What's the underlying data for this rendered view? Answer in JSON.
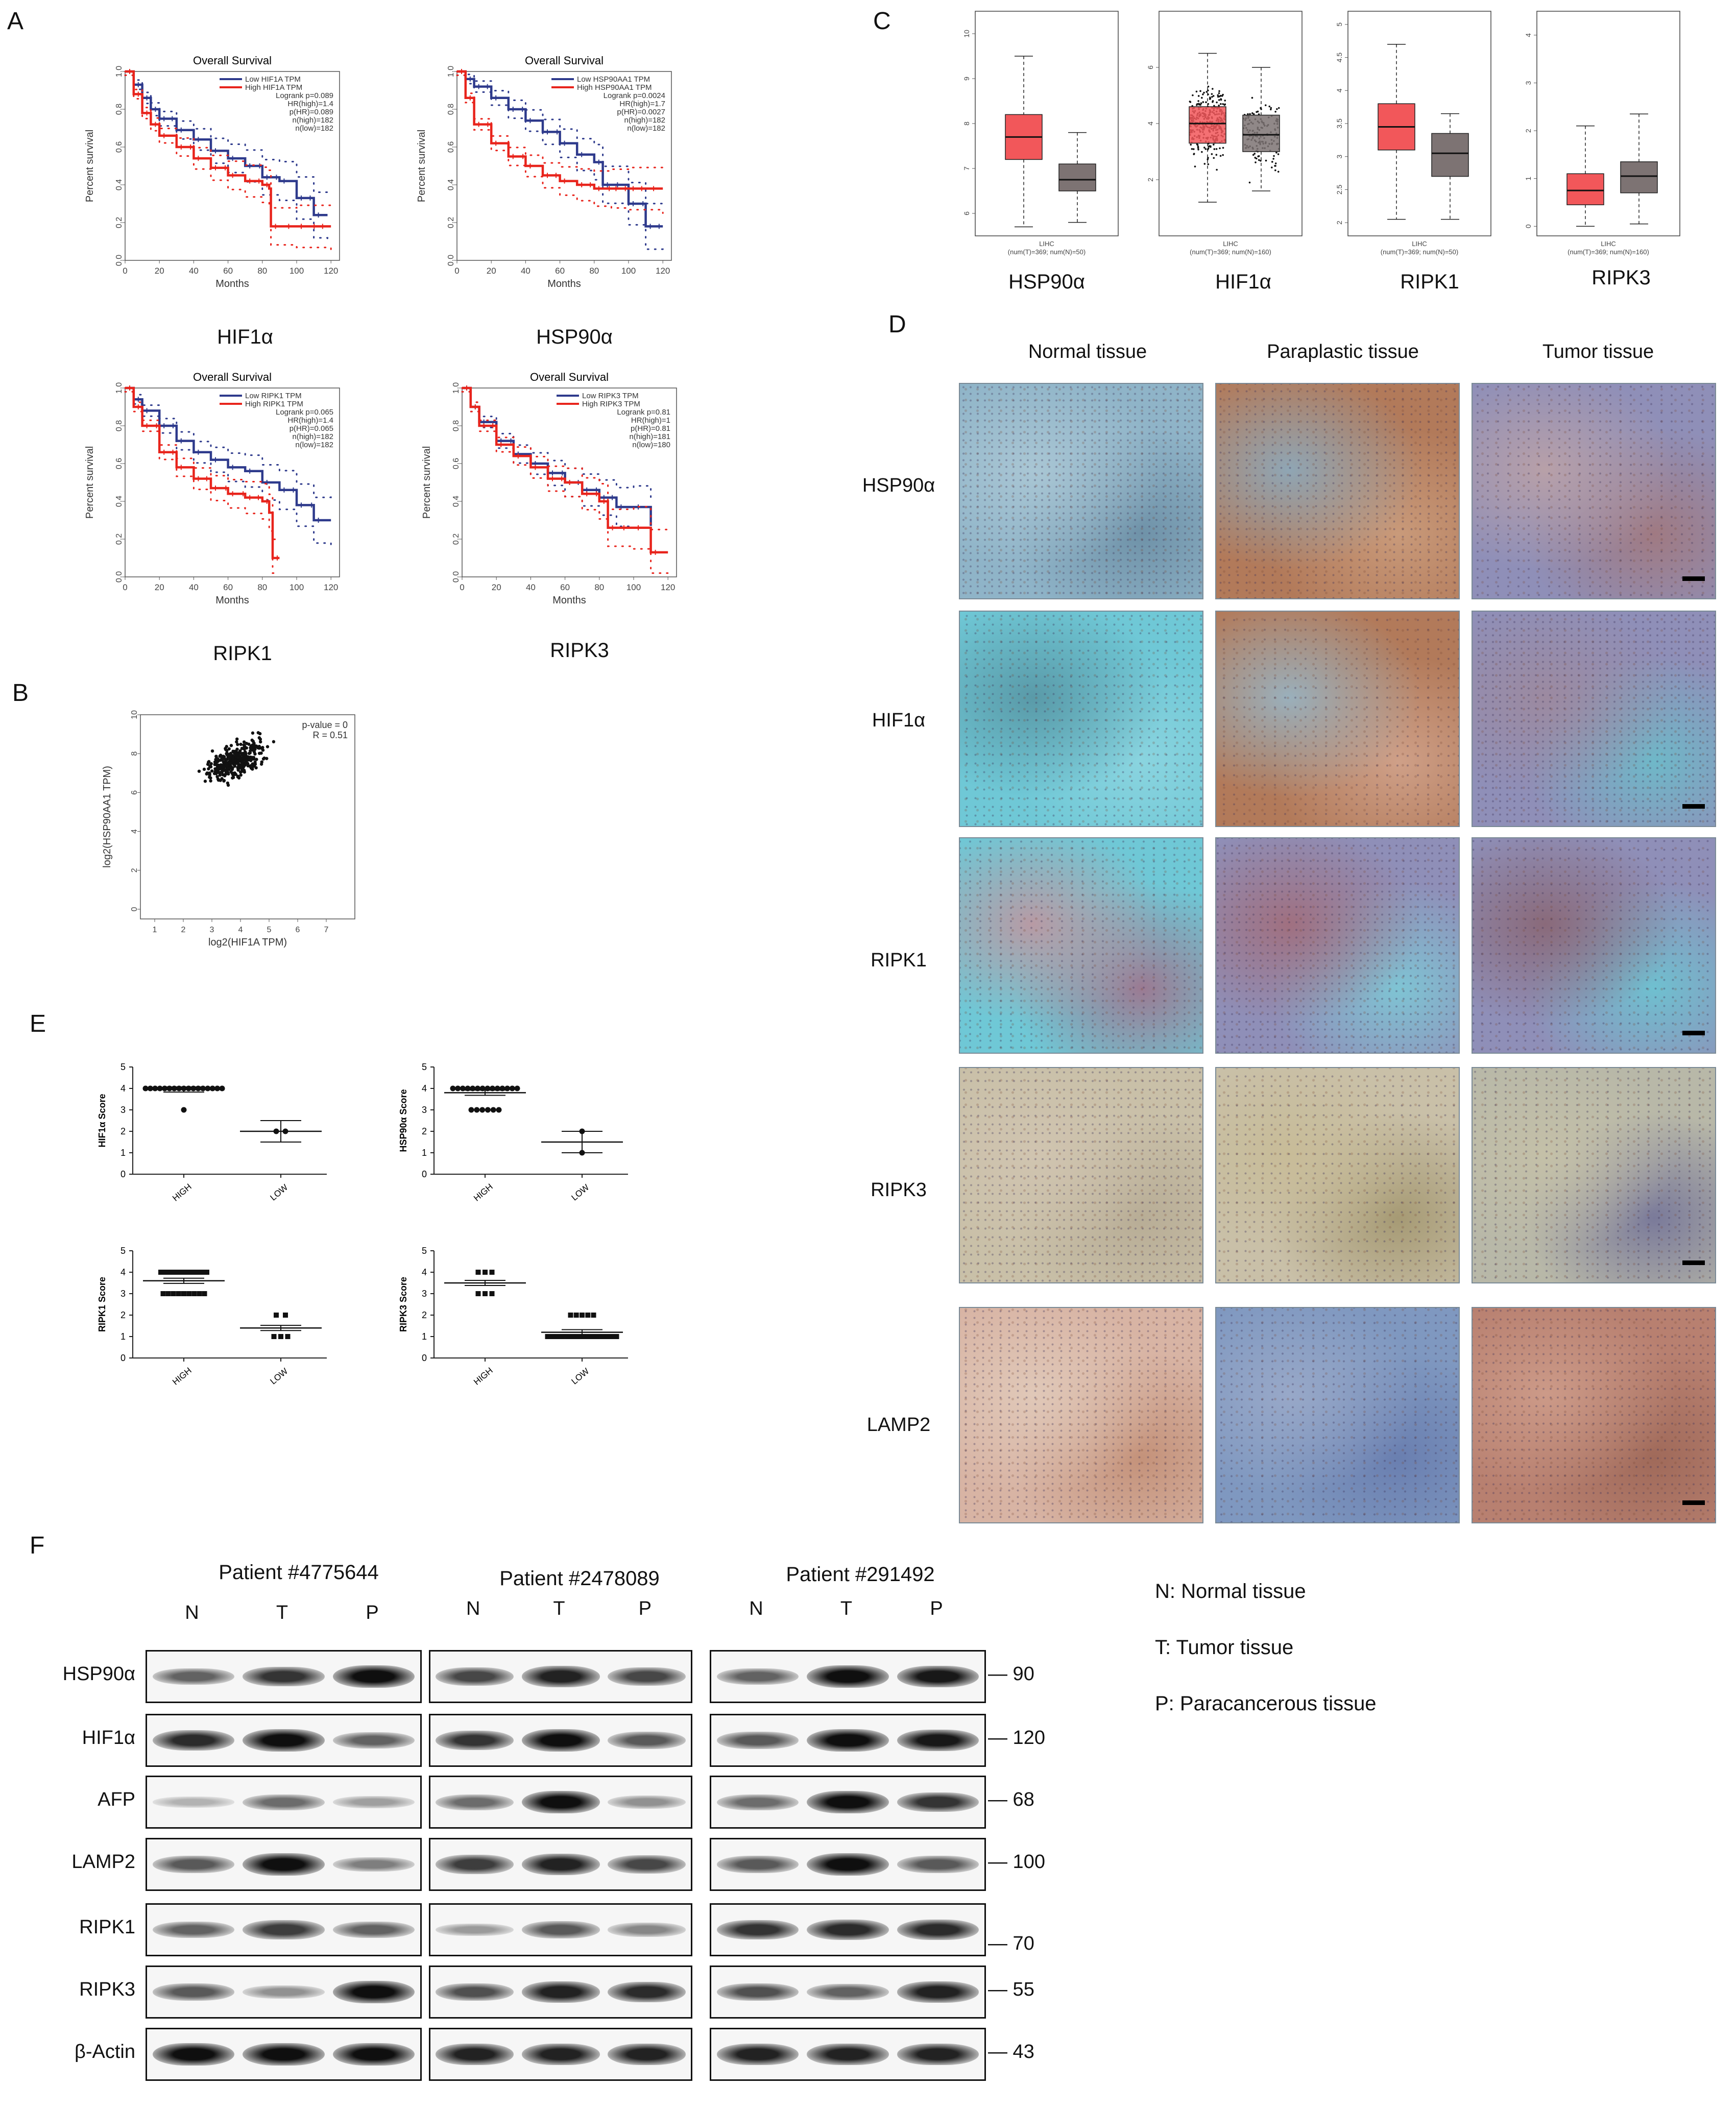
{
  "panels": {
    "A": "A",
    "B": "B",
    "C": "C",
    "D": "D",
    "E": "E",
    "F": "F"
  },
  "panel_a": {
    "months_label": "Months",
    "ylabel": "Percent survival",
    "plots": [
      {
        "title": "Overall Survival",
        "gene_label": "HIF1α",
        "legend": [
          "Low HIF1A TPM",
          "High HIF1A TPM"
        ],
        "stats": [
          "Logrank p=0.089",
          "HR(high)=1.4",
          "p(HR)=0.089",
          "n(high)=182",
          "n(low)=182"
        ]
      },
      {
        "title": "Overall Survival",
        "gene_label": "HSP90α",
        "legend": [
          "Low HSP90AA1 TPM",
          "High HSP90AA1 TPM"
        ],
        "stats": [
          "Logrank p=0.0024",
          "HR(high)=1.7",
          "p(HR)=0.0027",
          "n(high)=182",
          "n(low)=182"
        ]
      },
      {
        "title": "Overall Survival",
        "gene_label": "RIPK1",
        "legend": [
          "Low RIPK1 TPM",
          "High RIPK1 TPM"
        ],
        "stats": [
          "Logrank p=0.065",
          "HR(high)=1.4",
          "p(HR)=0.065",
          "n(high)=182",
          "n(low)=182"
        ]
      },
      {
        "title": "Overall Survival",
        "gene_label": "RIPK3",
        "legend": [
          "Low RIPK3 TPM",
          "High RIPK3 TPM"
        ],
        "stats": [
          "Logrank p=0.81",
          "HR(high)=1",
          "p(HR)=0.81",
          "n(high)=181",
          "n(low)=180"
        ]
      }
    ]
  },
  "panel_b": {
    "stats": [
      "p-value = 0",
      "R = 0.51"
    ],
    "xlabel": "log2(HIF1A TPM)",
    "ylabel": "log2(HSP90AA1 TPM)"
  },
  "panel_c": {
    "xlabel_lines": [
      "LIHC",
      "(num(T)=369; num(N)=50)"
    ],
    "xlabel_lines_160": [
      "LIHC",
      "(num(T)=369; num(N)=160)"
    ],
    "genes": [
      "HSP90α",
      "HIF1α",
      "RIPK1",
      "RIPK3"
    ]
  },
  "panel_d": {
    "columns": [
      "Normal tissue",
      "Paraplastic tissue",
      "Tumor tissue"
    ],
    "rows": [
      "HSP90α",
      "HIF1α",
      "RIPK1",
      "RIPK3",
      "LAMP2"
    ],
    "tile_colors": {
      "normal_blue": "#8fb4c8",
      "brown": "#b27a5a",
      "cyan": "#6fc8d6",
      "beige": "#c9c0a8",
      "pink": "#d8b4a4",
      "violet": "#8f8fb8"
    }
  },
  "panel_e": {
    "groups": [
      "HIGH",
      "LOW"
    ],
    "plots": [
      {
        "ylabel": "HIF1α  Score"
      },
      {
        "ylabel": "HSP90α  Score"
      },
      {
        "ylabel": "RIPK1 Score"
      },
      {
        "ylabel": "RIPK3 Score"
      }
    ]
  },
  "panel_f": {
    "patients": [
      "Patient #4775644",
      "Patient #2478089",
      "Patient #291492"
    ],
    "lanes": [
      "N",
      "T",
      "P"
    ],
    "proteins": [
      "HSP90α",
      "HIF1α",
      "AFP",
      "LAMP2",
      "RIPK1",
      "RIPK3",
      "β-Actin"
    ],
    "markers": [
      "90",
      "120",
      "68",
      "100",
      "70",
      "55",
      "43"
    ],
    "legend": [
      "N:  Normal tissue",
      "T:   Tumor tissue",
      "P:  Paracancerous tissue"
    ]
  },
  "chart_data": [
    {
      "type": "line",
      "name": "KM HIF1A",
      "xlim": [
        0,
        125
      ],
      "ylim": [
        0,
        1
      ],
      "xticks": [
        0,
        20,
        40,
        60,
        80,
        100,
        120
      ],
      "yticks": [
        0.0,
        0.2,
        0.4,
        0.6,
        0.8,
        1.0
      ],
      "series": [
        {
          "name": "Low HIF1A TPM",
          "color": "#2e3a8c",
          "x": [
            0,
            5,
            10,
            15,
            20,
            30,
            40,
            50,
            60,
            70,
            80,
            90,
            100,
            110,
            118
          ],
          "y": [
            1,
            0.93,
            0.86,
            0.8,
            0.75,
            0.69,
            0.64,
            0.58,
            0.54,
            0.5,
            0.44,
            0.42,
            0.33,
            0.24,
            0.24
          ]
        },
        {
          "name": "High HIF1A TPM",
          "color": "#e8241c",
          "x": [
            0,
            5,
            10,
            15,
            20,
            30,
            40,
            50,
            60,
            70,
            80,
            84,
            85,
            100,
            120
          ],
          "y": [
            1,
            0.88,
            0.78,
            0.72,
            0.66,
            0.6,
            0.54,
            0.49,
            0.45,
            0.42,
            0.4,
            0.38,
            0.18,
            0.18,
            0.18
          ]
        }
      ]
    },
    {
      "type": "line",
      "name": "KM HSP90AA1",
      "xlim": [
        0,
        125
      ],
      "ylim": [
        0,
        1
      ],
      "xticks": [
        0,
        20,
        40,
        60,
        80,
        100,
        120
      ],
      "yticks": [
        0.0,
        0.2,
        0.4,
        0.6,
        0.8,
        1.0
      ],
      "series": [
        {
          "name": "Low HSP90AA1 TPM",
          "color": "#2e3a8c",
          "x": [
            0,
            5,
            10,
            20,
            30,
            40,
            50,
            60,
            70,
            80,
            85,
            100,
            110,
            120
          ],
          "y": [
            1,
            0.96,
            0.92,
            0.86,
            0.8,
            0.74,
            0.68,
            0.62,
            0.56,
            0.52,
            0.4,
            0.3,
            0.18,
            0.18
          ]
        },
        {
          "name": "High HSP90AA1 TPM",
          "color": "#e8241c",
          "x": [
            0,
            5,
            10,
            20,
            30,
            40,
            50,
            60,
            70,
            80,
            90,
            100,
            120
          ],
          "y": [
            1,
            0.86,
            0.72,
            0.62,
            0.55,
            0.5,
            0.45,
            0.42,
            0.4,
            0.38,
            0.38,
            0.38,
            0.38
          ]
        }
      ]
    },
    {
      "type": "line",
      "name": "KM RIPK1",
      "xlim": [
        0,
        125
      ],
      "ylim": [
        0,
        1
      ],
      "xticks": [
        0,
        20,
        40,
        60,
        80,
        100,
        120
      ],
      "yticks": [
        0.0,
        0.2,
        0.4,
        0.6,
        0.8,
        1.0
      ],
      "series": [
        {
          "name": "Low RIPK1 TPM",
          "color": "#2e3a8c",
          "x": [
            0,
            5,
            10,
            20,
            30,
            40,
            50,
            60,
            70,
            80,
            90,
            100,
            110,
            120
          ],
          "y": [
            1,
            0.94,
            0.88,
            0.8,
            0.72,
            0.66,
            0.62,
            0.58,
            0.56,
            0.5,
            0.46,
            0.38,
            0.3,
            0.3
          ]
        },
        {
          "name": "High RIPK1 TPM",
          "color": "#e8241c",
          "x": [
            0,
            5,
            10,
            20,
            30,
            40,
            50,
            60,
            70,
            80,
            84,
            86,
            90
          ],
          "y": [
            1,
            0.9,
            0.8,
            0.66,
            0.58,
            0.52,
            0.47,
            0.44,
            0.42,
            0.4,
            0.34,
            0.1,
            0.1
          ]
        }
      ]
    },
    {
      "type": "line",
      "name": "KM RIPK3",
      "xlim": [
        0,
        125
      ],
      "ylim": [
        0,
        1
      ],
      "xticks": [
        0,
        20,
        40,
        60,
        80,
        100,
        120
      ],
      "yticks": [
        0.0,
        0.2,
        0.4,
        0.6,
        0.8,
        1.0
      ],
      "series": [
        {
          "name": "Low RIPK3 TPM",
          "color": "#2e3a8c",
          "x": [
            0,
            5,
            10,
            20,
            30,
            40,
            50,
            60,
            70,
            80,
            90,
            100,
            110
          ],
          "y": [
            1,
            0.9,
            0.82,
            0.72,
            0.65,
            0.6,
            0.55,
            0.5,
            0.46,
            0.42,
            0.37,
            0.37,
            0.27
          ]
        },
        {
          "name": "High RIPK3 TPM",
          "color": "#e8241c",
          "x": [
            0,
            5,
            10,
            20,
            30,
            40,
            50,
            60,
            70,
            80,
            85,
            100,
            110,
            120
          ],
          "y": [
            1,
            0.9,
            0.8,
            0.7,
            0.64,
            0.58,
            0.52,
            0.5,
            0.44,
            0.4,
            0.26,
            0.26,
            0.13,
            0.13
          ]
        }
      ]
    },
    {
      "type": "scatter",
      "name": "Correlation HIF1A vs HSP90AA1",
      "xlim": [
        0.5,
        8
      ],
      "ylim": [
        -0.5,
        10
      ],
      "xticks": [
        1,
        2,
        3,
        4,
        5,
        6,
        7
      ],
      "yticks": [
        0,
        2,
        4,
        6,
        8,
        10
      ],
      "stats": {
        "p_value": 0,
        "R": 0.51
      }
    },
    {
      "type": "box",
      "name": "HSP90AA1 expression LIHC",
      "yticks": [
        6,
        7,
        8,
        9,
        10
      ],
      "ylim": [
        5.5,
        10.5
      ],
      "boxes": [
        {
          "group": "T",
          "color": "#f2575a",
          "whisker_low": 5.7,
          "q1": 7.2,
          "median": 7.7,
          "q3": 8.2,
          "whisker_high": 9.5
        },
        {
          "group": "N",
          "color": "#7d7373",
          "whisker_low": 5.8,
          "q1": 6.5,
          "median": 6.75,
          "q3": 7.1,
          "whisker_high": 7.8
        }
      ]
    },
    {
      "type": "box",
      "name": "HIF1A expression LIHC",
      "yticks": [
        2,
        4,
        6
      ],
      "ylim": [
        0,
        8
      ],
      "boxes": [
        {
          "group": "T",
          "color": "#f2575a",
          "whisker_low": 1.2,
          "q1": 3.3,
          "median": 4.0,
          "q3": 4.6,
          "whisker_high": 6.5
        },
        {
          "group": "N",
          "color": "#7d7373",
          "whisker_low": 1.6,
          "q1": 3.0,
          "median": 3.6,
          "q3": 4.3,
          "whisker_high": 6.0
        }
      ]
    },
    {
      "type": "box",
      "name": "RIPK1 expression LIHC",
      "yticks": [
        2.0,
        2.5,
        3.0,
        3.5,
        4.0,
        4.5,
        5.0
      ],
      "ylim": [
        1.8,
        5.2
      ],
      "boxes": [
        {
          "group": "T",
          "color": "#f2575a",
          "whisker_low": 2.05,
          "q1": 3.1,
          "median": 3.45,
          "q3": 3.8,
          "whisker_high": 4.7
        },
        {
          "group": "N",
          "color": "#7d7373",
          "whisker_low": 2.05,
          "q1": 2.7,
          "median": 3.05,
          "q3": 3.35,
          "whisker_high": 3.65
        }
      ]
    },
    {
      "type": "box",
      "name": "RIPK3 expression LIHC",
      "yticks": [
        0,
        1,
        2,
        3,
        4
      ],
      "ylim": [
        -0.2,
        4.5
      ],
      "boxes": [
        {
          "group": "T",
          "color": "#f2575a",
          "whisker_low": 0.0,
          "q1": 0.45,
          "median": 0.75,
          "q3": 1.1,
          "whisker_high": 2.1
        },
        {
          "group": "N",
          "color": "#7d7373",
          "whisker_low": 0.05,
          "q1": 0.7,
          "median": 1.05,
          "q3": 1.35,
          "whisker_high": 2.35
        }
      ]
    },
    {
      "type": "scatter",
      "name": "HIF1α Score",
      "categories": [
        "HIGH",
        "LOW"
      ],
      "ylim": [
        0,
        5
      ],
      "yticks": [
        0,
        1,
        2,
        3,
        4,
        5
      ],
      "groups": [
        {
          "group": "HIGH",
          "values": [
            4,
            4,
            4,
            4,
            4,
            4,
            4,
            4,
            4,
            4,
            4,
            4,
            4,
            4,
            4,
            4,
            4,
            3
          ],
          "mean": 3.95
        },
        {
          "group": "LOW",
          "values": [
            2,
            2
          ],
          "mean": 2.0
        }
      ]
    },
    {
      "type": "scatter",
      "name": "HSP90α Score",
      "categories": [
        "HIGH",
        "LOW"
      ],
      "ylim": [
        0,
        5
      ],
      "yticks": [
        0,
        1,
        2,
        3,
        4,
        5
      ],
      "groups": [
        {
          "group": "HIGH",
          "values": [
            4,
            4,
            4,
            4,
            4,
            4,
            4,
            4,
            4,
            4,
            4,
            4,
            4,
            4,
            3,
            3,
            3,
            3,
            3,
            3
          ],
          "mean": 3.8
        },
        {
          "group": "LOW",
          "values": [
            2,
            1
          ],
          "mean": 1.5
        }
      ]
    },
    {
      "type": "scatter",
      "name": "RIPK1 Score",
      "categories": [
        "HIGH",
        "LOW"
      ],
      "ylim": [
        0,
        5
      ],
      "yticks": [
        0,
        1,
        2,
        3,
        4,
        5
      ],
      "groups": [
        {
          "group": "HIGH",
          "values": [
            4,
            4,
            4,
            4,
            4,
            4,
            4,
            4,
            4,
            4,
            3,
            3,
            3,
            3,
            3,
            3,
            3,
            3,
            3
          ],
          "mean": 3.6
        },
        {
          "group": "LOW",
          "values": [
            2,
            2,
            1,
            1,
            1
          ],
          "mean": 1.4
        }
      ]
    },
    {
      "type": "scatter",
      "name": "RIPK3 Score",
      "categories": [
        "HIGH",
        "LOW"
      ],
      "ylim": [
        0,
        5
      ],
      "yticks": [
        0,
        1,
        2,
        3,
        4,
        5
      ],
      "groups": [
        {
          "group": "HIGH",
          "values": [
            4,
            4,
            4,
            3,
            3,
            3
          ],
          "mean": 3.5
        },
        {
          "group": "LOW",
          "values": [
            2,
            2,
            2,
            2,
            2,
            1,
            1,
            1,
            1,
            1,
            1,
            1,
            1,
            1,
            1,
            1,
            1,
            1,
            1,
            1
          ],
          "mean": 1.2
        }
      ]
    }
  ]
}
